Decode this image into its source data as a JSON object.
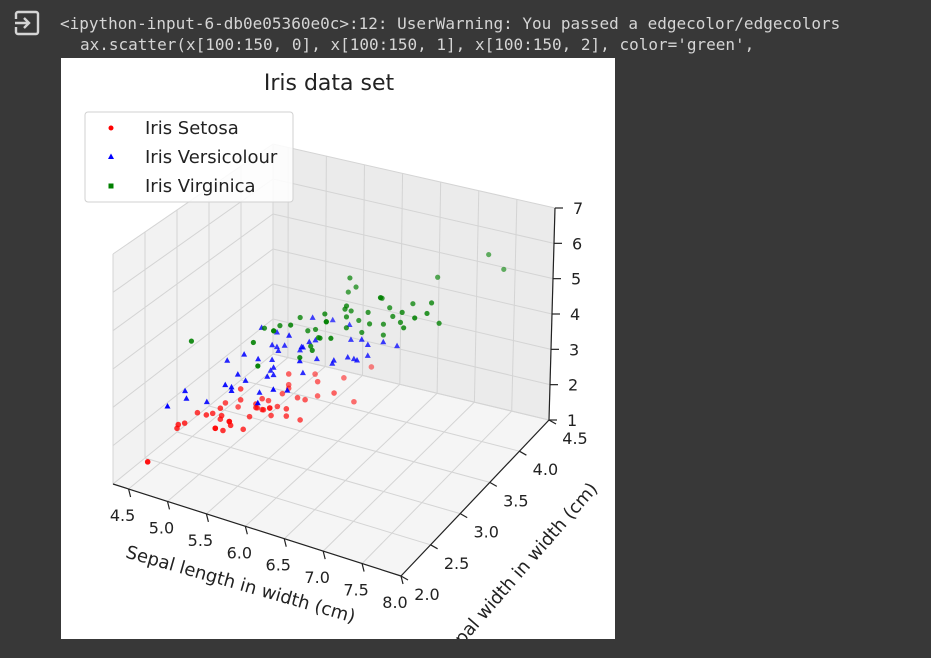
{
  "output": {
    "icon": "output-arrow-icon",
    "warning_line1": "<ipython-input-6-db0e05360e0c>:12: UserWarning: You passed a edgecolor/edgecolors",
    "warning_line2": "ax.scatter(x[100:150, 0], x[100:150, 1], x[100:150, 2], color='green',"
  },
  "chart_data": {
    "type": "scatter",
    "title": "Iris data set",
    "xlabel": "Sepal length in width (cm)",
    "ylabel": "Sepal width in width (cm)",
    "zlabel": "",
    "xlim": [
      4.3,
      8.0
    ],
    "ylim": [
      2.0,
      4.5
    ],
    "zlim": [
      1,
      7
    ],
    "x_ticks": [
      "4.5",
      "5.0",
      "5.5",
      "6.0",
      "6.5",
      "7.0",
      "7.5",
      "8.0"
    ],
    "y_ticks": [
      "2.0",
      "2.5",
      "3.0",
      "3.5",
      "4.0",
      "4.5"
    ],
    "z_ticks": [
      "1",
      "2",
      "3",
      "4",
      "5",
      "6",
      "7"
    ],
    "grid": true,
    "legend_position": "top-left",
    "series": [
      {
        "name": "Iris Setosa",
        "color": "#ff0000",
        "marker": "circle",
        "points": [
          [
            5.1,
            3.5,
            1.4
          ],
          [
            4.9,
            3.0,
            1.4
          ],
          [
            4.7,
            3.2,
            1.3
          ],
          [
            4.6,
            3.1,
            1.5
          ],
          [
            5.0,
            3.6,
            1.4
          ],
          [
            5.4,
            3.9,
            1.7
          ],
          [
            4.6,
            3.4,
            1.4
          ],
          [
            5.0,
            3.4,
            1.5
          ],
          [
            4.4,
            2.9,
            1.4
          ],
          [
            4.9,
            3.1,
            1.5
          ],
          [
            5.4,
            3.7,
            1.5
          ],
          [
            4.8,
            3.4,
            1.6
          ],
          [
            4.8,
            3.0,
            1.4
          ],
          [
            4.3,
            3.0,
            1.1
          ],
          [
            5.8,
            4.0,
            1.2
          ],
          [
            5.7,
            4.4,
            1.5
          ],
          [
            5.4,
            3.9,
            1.3
          ],
          [
            5.1,
            3.5,
            1.4
          ],
          [
            5.7,
            3.8,
            1.7
          ],
          [
            5.1,
            3.8,
            1.5
          ],
          [
            5.4,
            3.4,
            1.7
          ],
          [
            5.1,
            3.7,
            1.5
          ],
          [
            4.6,
            3.6,
            1.0
          ],
          [
            5.1,
            3.3,
            1.7
          ],
          [
            4.8,
            3.4,
            1.9
          ],
          [
            5.0,
            3.0,
            1.6
          ],
          [
            5.0,
            3.4,
            1.6
          ],
          [
            5.2,
            3.5,
            1.5
          ],
          [
            5.2,
            3.4,
            1.4
          ],
          [
            4.7,
            3.2,
            1.6
          ],
          [
            4.8,
            3.1,
            1.6
          ],
          [
            5.4,
            3.4,
            1.5
          ],
          [
            5.2,
            4.1,
            1.5
          ],
          [
            5.5,
            4.2,
            1.4
          ],
          [
            4.9,
            3.1,
            1.5
          ],
          [
            5.0,
            3.2,
            1.2
          ],
          [
            5.5,
            3.5,
            1.3
          ],
          [
            4.4,
            3.0,
            1.3
          ],
          [
            5.1,
            3.4,
            1.5
          ],
          [
            5.0,
            3.5,
            1.3
          ],
          [
            4.5,
            2.3,
            1.3
          ],
          [
            4.4,
            3.2,
            1.3
          ],
          [
            5.0,
            3.5,
            1.6
          ],
          [
            5.1,
            3.8,
            1.9
          ],
          [
            4.8,
            3.0,
            1.4
          ],
          [
            5.1,
            3.8,
            1.6
          ],
          [
            4.6,
            3.2,
            1.4
          ],
          [
            5.3,
            3.7,
            1.5
          ],
          [
            5.0,
            3.3,
            1.4
          ]
        ]
      },
      {
        "name": "Iris Versicolour",
        "color": "#0000ff",
        "marker": "triangle",
        "points": [
          [
            7.0,
            3.2,
            4.7
          ],
          [
            6.4,
            3.2,
            4.5
          ],
          [
            6.9,
            3.1,
            4.9
          ],
          [
            5.5,
            2.3,
            4.0
          ],
          [
            6.5,
            2.8,
            4.6
          ],
          [
            5.7,
            2.8,
            4.5
          ],
          [
            6.3,
            3.3,
            4.7
          ],
          [
            4.9,
            2.4,
            3.3
          ],
          [
            6.6,
            2.9,
            4.6
          ],
          [
            5.2,
            2.7,
            3.9
          ],
          [
            5.0,
            2.0,
            3.5
          ],
          [
            5.9,
            3.0,
            4.2
          ],
          [
            6.0,
            2.2,
            4.0
          ],
          [
            6.1,
            2.9,
            4.7
          ],
          [
            5.6,
            2.9,
            3.6
          ],
          [
            6.7,
            3.1,
            4.4
          ],
          [
            5.6,
            3.0,
            4.5
          ],
          [
            5.8,
            2.7,
            4.1
          ],
          [
            6.2,
            2.2,
            4.5
          ],
          [
            5.6,
            2.5,
            3.9
          ],
          [
            5.9,
            3.2,
            4.8
          ],
          [
            6.1,
            2.8,
            4.0
          ],
          [
            6.3,
            2.5,
            4.9
          ],
          [
            6.1,
            2.8,
            4.7
          ],
          [
            6.4,
            2.9,
            4.3
          ],
          [
            6.6,
            3.0,
            4.4
          ],
          [
            6.8,
            2.8,
            4.8
          ],
          [
            6.7,
            3.0,
            5.0
          ],
          [
            6.0,
            2.9,
            4.5
          ],
          [
            5.7,
            2.6,
            3.5
          ],
          [
            5.5,
            2.4,
            3.8
          ],
          [
            5.5,
            2.4,
            3.7
          ],
          [
            5.8,
            2.7,
            3.9
          ],
          [
            6.0,
            2.7,
            5.1
          ],
          [
            5.4,
            3.0,
            4.5
          ],
          [
            6.0,
            3.4,
            4.5
          ],
          [
            6.7,
            3.1,
            4.7
          ],
          [
            6.3,
            2.3,
            4.4
          ],
          [
            5.6,
            3.0,
            4.1
          ],
          [
            5.5,
            2.5,
            4.0
          ],
          [
            5.5,
            2.6,
            4.4
          ],
          [
            6.1,
            3.0,
            4.6
          ],
          [
            5.8,
            2.6,
            4.0
          ],
          [
            5.0,
            2.3,
            3.3
          ],
          [
            5.6,
            2.7,
            4.2
          ],
          [
            5.7,
            3.0,
            4.2
          ],
          [
            5.7,
            2.9,
            4.2
          ],
          [
            6.2,
            2.9,
            4.3
          ],
          [
            5.1,
            2.5,
            3.0
          ],
          [
            5.7,
            2.8,
            4.1
          ]
        ]
      },
      {
        "name": "Iris Virginica",
        "color": "#008000",
        "marker": "square",
        "points": [
          [
            6.3,
            3.3,
            6.0
          ],
          [
            5.8,
            2.7,
            5.1
          ],
          [
            7.1,
            3.0,
            5.9
          ],
          [
            6.3,
            2.9,
            5.6
          ],
          [
            6.5,
            3.0,
            5.8
          ],
          [
            7.6,
            3.0,
            6.6
          ],
          [
            4.9,
            2.5,
            4.5
          ],
          [
            7.3,
            2.9,
            6.3
          ],
          [
            6.7,
            2.5,
            5.8
          ],
          [
            7.2,
            3.6,
            6.1
          ],
          [
            6.5,
            3.2,
            5.1
          ],
          [
            6.4,
            2.7,
            5.3
          ],
          [
            6.8,
            3.0,
            5.5
          ],
          [
            5.7,
            2.5,
            5.0
          ],
          [
            5.8,
            2.8,
            5.1
          ],
          [
            6.4,
            3.2,
            5.3
          ],
          [
            6.5,
            3.0,
            5.5
          ],
          [
            7.7,
            3.8,
            6.7
          ],
          [
            7.7,
            2.6,
            6.9
          ],
          [
            6.0,
            2.2,
            5.0
          ],
          [
            6.9,
            3.2,
            5.7
          ],
          [
            5.6,
            2.8,
            4.9
          ],
          [
            7.7,
            2.8,
            6.7
          ],
          [
            6.3,
            2.7,
            4.9
          ],
          [
            6.7,
            3.3,
            5.7
          ],
          [
            7.2,
            3.2,
            6.0
          ],
          [
            6.2,
            2.8,
            4.8
          ],
          [
            6.1,
            3.0,
            4.9
          ],
          [
            6.4,
            2.8,
            5.6
          ],
          [
            7.2,
            3.0,
            5.8
          ],
          [
            7.4,
            2.8,
            6.1
          ],
          [
            7.9,
            3.8,
            6.4
          ],
          [
            6.4,
            2.8,
            5.6
          ],
          [
            6.3,
            2.8,
            5.1
          ],
          [
            6.1,
            2.6,
            5.6
          ],
          [
            7.7,
            3.0,
            6.1
          ],
          [
            6.3,
            3.4,
            5.6
          ],
          [
            6.4,
            3.1,
            5.5
          ],
          [
            6.0,
            3.0,
            4.8
          ],
          [
            6.9,
            3.1,
            5.4
          ],
          [
            6.7,
            3.1,
            5.6
          ],
          [
            6.9,
            3.1,
            5.1
          ],
          [
            5.8,
            2.7,
            5.1
          ],
          [
            6.8,
            3.2,
            5.9
          ],
          [
            6.7,
            3.3,
            5.7
          ],
          [
            6.7,
            3.0,
            5.2
          ],
          [
            6.3,
            2.5,
            5.0
          ],
          [
            6.5,
            3.0,
            5.2
          ],
          [
            6.2,
            3.4,
            5.4
          ],
          [
            5.9,
            3.0,
            5.1
          ]
        ]
      }
    ]
  }
}
